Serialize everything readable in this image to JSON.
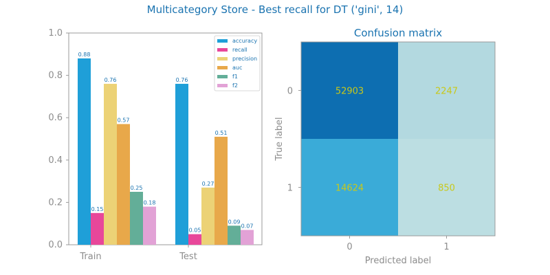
{
  "figure_title": "Multicategory Store - Best recall for DT ('gini', 14)",
  "chart_data": [
    {
      "type": "bar",
      "title": "",
      "xlabel": "",
      "ylabel": "",
      "categories": [
        "Train",
        "Test"
      ],
      "ylim": [
        0,
        1
      ],
      "yticks": [
        "0.0",
        "0.2",
        "0.4",
        "0.6",
        "0.8",
        "1.0"
      ],
      "legend_placement": "top-right",
      "series": [
        {
          "name": "accuracy",
          "color": "#1f9fd8",
          "values": [
            0.88,
            0.76
          ],
          "labels": [
            "0.88",
            "0.76"
          ]
        },
        {
          "name": "recall",
          "color": "#e8479a",
          "values": [
            0.15,
            0.05
          ],
          "labels": [
            "0.15",
            "0.05"
          ]
        },
        {
          "name": "precision",
          "color": "#ecd276",
          "values": [
            0.76,
            0.27
          ],
          "labels": [
            "0.76",
            "0.27"
          ]
        },
        {
          "name": "auc",
          "color": "#e8a84a",
          "values": [
            0.57,
            0.51
          ],
          "labels": [
            "0.57",
            "0.51"
          ]
        },
        {
          "name": "f1",
          "color": "#63ae98",
          "values": [
            0.25,
            0.09
          ],
          "labels": [
            "0.25",
            "0.09"
          ]
        },
        {
          "name": "f2",
          "color": "#e2a2d6",
          "values": [
            0.18,
            0.07
          ],
          "labels": [
            "0.18",
            "0.07"
          ]
        }
      ]
    },
    {
      "type": "heatmap",
      "title": "Confusion matrix",
      "xlabel": "Predicted label",
      "ylabel": "True label",
      "x_categories": [
        "0",
        "1"
      ],
      "y_categories": [
        "0",
        "1"
      ],
      "values": [
        [
          52903,
          2247
        ],
        [
          14624,
          850
        ]
      ],
      "cell_labels": [
        [
          "52903",
          "2247"
        ],
        [
          "14624",
          "850"
        ]
      ],
      "cell_colors": [
        [
          "#0d6eb1",
          "#b3d9e0"
        ],
        [
          "#3aabd8",
          "#bcdee2"
        ]
      ],
      "text_color": "#c8c81a"
    }
  ],
  "colors": {
    "title": "#1a73b0",
    "axis_text": "#8c8c8c",
    "value_label": "#1a73b0",
    "spine": "#999999"
  }
}
